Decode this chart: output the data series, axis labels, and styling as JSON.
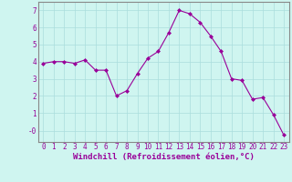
{
  "x": [
    0,
    1,
    2,
    3,
    4,
    5,
    6,
    7,
    8,
    9,
    10,
    11,
    12,
    13,
    14,
    15,
    16,
    17,
    18,
    19,
    20,
    21,
    22,
    23
  ],
  "y": [
    3.9,
    4.0,
    4.0,
    3.9,
    4.1,
    3.5,
    3.5,
    2.0,
    2.3,
    3.3,
    4.2,
    4.6,
    5.7,
    7.0,
    6.8,
    6.3,
    5.5,
    4.6,
    3.0,
    2.9,
    1.8,
    1.9,
    0.9,
    -0.3
  ],
  "line_color": "#990099",
  "marker": "D",
  "marker_size": 2,
  "bg_color": "#cff5f0",
  "grid_color": "#aadddd",
  "xlabel": "Windchill (Refroidissement éolien,°C)",
  "xlabel_color": "#990099",
  "xlabel_fontsize": 6.5,
  "tick_color": "#990099",
  "tick_fontsize": 5.5,
  "yticks": [
    0,
    1,
    2,
    3,
    4,
    5,
    6,
    7
  ],
  "ytick_labels": [
    "-0",
    "1",
    "2",
    "3",
    "4",
    "5",
    "6",
    "7"
  ],
  "ylim": [
    -0.7,
    7.5
  ],
  "xlim": [
    -0.5,
    23.5
  ],
  "spine_color": "#888888"
}
